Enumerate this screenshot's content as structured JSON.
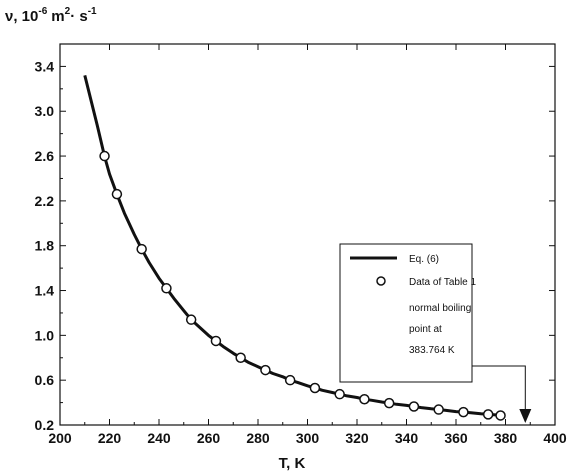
{
  "chart_data": {
    "type": "line",
    "xlabel": "T, K",
    "ylabel": {
      "symbol": "ν, 10",
      "exp1": "-6",
      "unit_m": "m",
      "exp2": "2",
      "unit_s": "· s",
      "exp3": "-1"
    },
    "xlim": [
      200,
      400
    ],
    "ylim": [
      0.2,
      3.6
    ],
    "x_ticks": [
      200,
      220,
      240,
      260,
      280,
      300,
      320,
      340,
      360,
      380,
      400
    ],
    "x_tick_labels": [
      "200",
      "220",
      "240",
      "260",
      "280",
      "300",
      "320",
      "340",
      "360",
      "380",
      "400"
    ],
    "y_ticks": [
      0.2,
      0.6,
      1.0,
      1.4,
      1.8,
      2.2,
      2.6,
      3.0,
      3.4
    ],
    "y_tick_labels": [
      "0.2",
      "0.6",
      "1.0",
      "1.4",
      "1.8",
      "2.2",
      "2.6",
      "3.0",
      "3.4"
    ],
    "grid": false,
    "legend_position": "right",
    "series": [
      {
        "name": "Eq. (6)",
        "style": "line",
        "x": [
          210,
          215,
          218,
          220,
          223,
          226,
          230,
          233,
          236,
          240,
          243,
          246,
          250,
          253,
          256,
          260,
          263,
          266,
          270,
          273,
          276,
          280,
          283,
          286,
          290,
          293,
          296,
          300,
          303,
          306,
          310,
          313,
          316,
          320,
          323,
          326,
          330,
          333,
          336,
          340,
          343,
          346,
          350,
          353,
          356,
          360,
          363,
          366,
          370,
          373,
          376,
          378
        ],
        "y": [
          3.32,
          2.88,
          2.6,
          2.44,
          2.26,
          2.09,
          1.9,
          1.77,
          1.65,
          1.51,
          1.42,
          1.33,
          1.22,
          1.14,
          1.08,
          1.0,
          0.95,
          0.9,
          0.84,
          0.8,
          0.76,
          0.72,
          0.69,
          0.66,
          0.63,
          0.6,
          0.58,
          0.55,
          0.53,
          0.51,
          0.49,
          0.475,
          0.46,
          0.445,
          0.43,
          0.42,
          0.405,
          0.395,
          0.385,
          0.375,
          0.365,
          0.355,
          0.345,
          0.338,
          0.33,
          0.32,
          0.315,
          0.31,
          0.3,
          0.295,
          0.29,
          0.285
        ]
      },
      {
        "name": "Data of Table 1",
        "style": "points",
        "x": [
          218,
          223,
          233,
          243,
          253,
          263,
          273,
          283,
          293,
          303,
          313,
          323,
          333,
          343,
          353,
          363,
          373,
          378
        ],
        "y": [
          2.6,
          2.26,
          1.77,
          1.42,
          1.14,
          0.95,
          0.8,
          0.69,
          0.6,
          0.53,
          0.475,
          0.43,
          0.395,
          0.365,
          0.338,
          0.315,
          0.295,
          0.285
        ]
      }
    ],
    "annotation": {
      "text_lines": [
        "normal boiling",
        "point at",
        "383.764  K"
      ],
      "x": 388
    }
  }
}
